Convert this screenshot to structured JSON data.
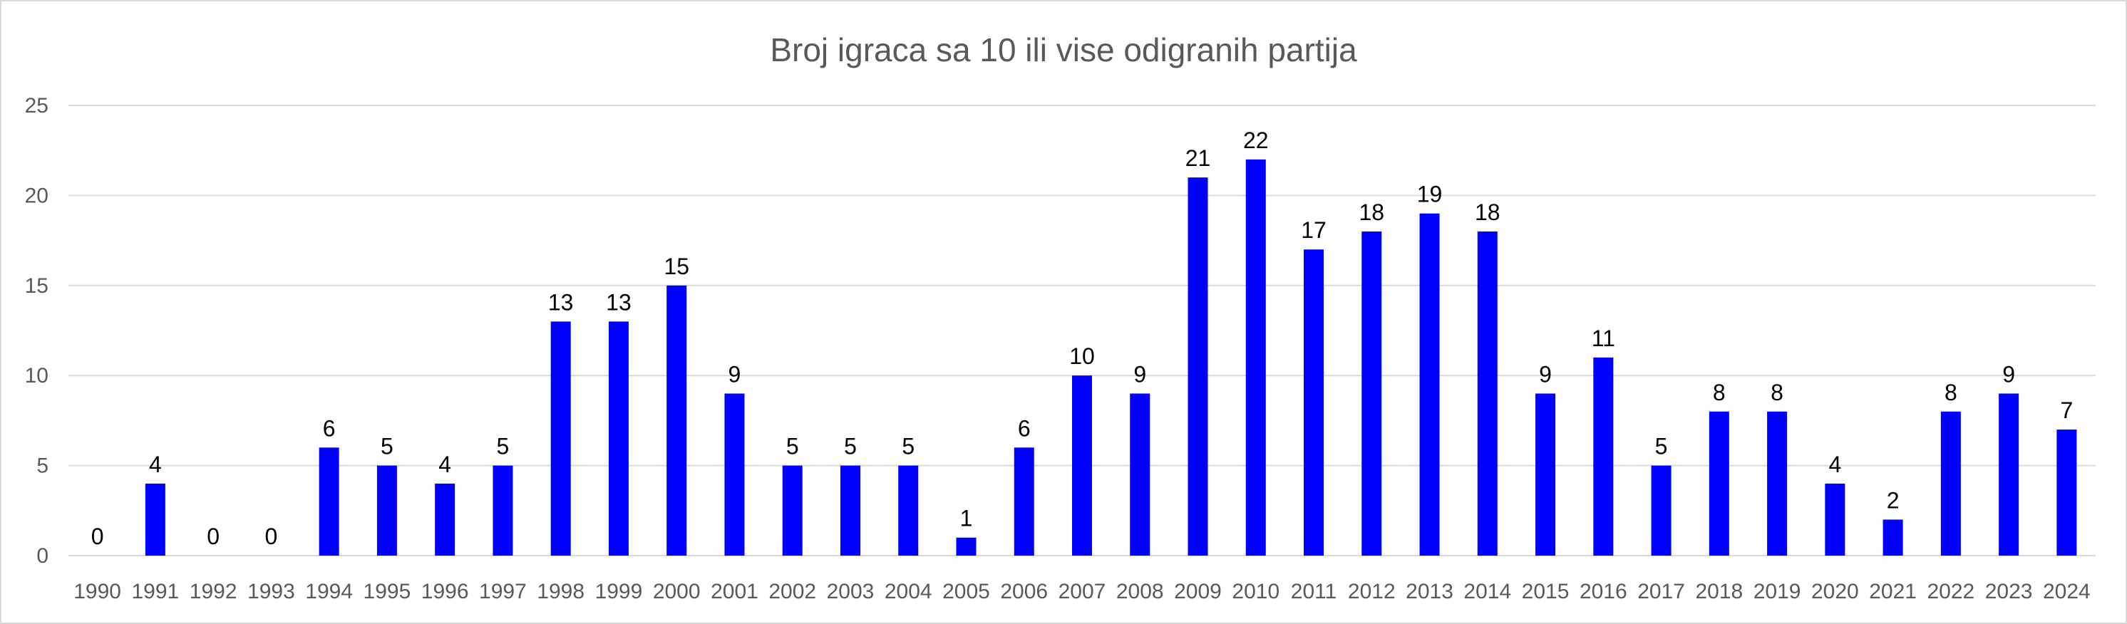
{
  "chart_data": {
    "type": "bar",
    "title": "Broj igraca sa 10 ili vise odigranih partija",
    "xlabel": "",
    "ylabel": "",
    "ylim": [
      0,
      25
    ],
    "yticks": [
      0,
      5,
      10,
      15,
      20,
      25
    ],
    "grid": true,
    "legend": "none",
    "bar_color": "#0000ff",
    "categories": [
      "1990",
      "1991",
      "1992",
      "1993",
      "1994",
      "1995",
      "1996",
      "1997",
      "1998",
      "1999",
      "2000",
      "2001",
      "2002",
      "2003",
      "2004",
      "2005",
      "2006",
      "2007",
      "2008",
      "2009",
      "2010",
      "2011",
      "2012",
      "2013",
      "2014",
      "2015",
      "2016",
      "2017",
      "2018",
      "2019",
      "2020",
      "2021",
      "2022",
      "2023",
      "2024"
    ],
    "values": [
      0,
      4,
      0,
      0,
      6,
      5,
      4,
      5,
      13,
      13,
      15,
      9,
      5,
      5,
      5,
      1,
      6,
      10,
      9,
      21,
      22,
      17,
      18,
      19,
      18,
      9,
      11,
      5,
      8,
      8,
      4,
      2,
      8,
      9,
      7
    ],
    "data_labels": true
  }
}
